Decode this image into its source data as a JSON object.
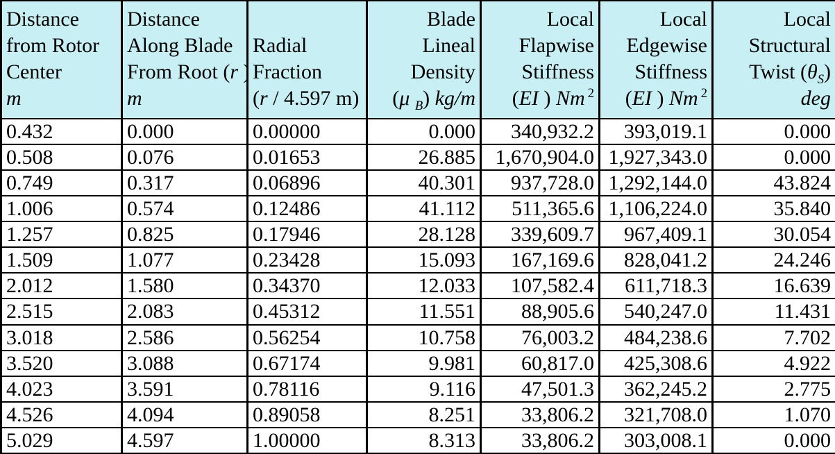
{
  "colors": {
    "header_background": "#C7EFF4",
    "grid_border": "#000000",
    "cell_background": "#FFFFFF"
  },
  "chart_data": {
    "type": "table",
    "title": "Blade structural properties distribution table",
    "columns": [
      "Distance from Rotor Center (m)",
      "Distance Along Blade From Root (r) (m)",
      "Radial Fraction (r / 4.597 m)",
      "Blade Lineal Density (muB) (kg/m)",
      "Local Flapwise Stiffness (EI) (Nm2)",
      "Local Edgewise Stiffness (EI) (Nm2)",
      "Local Structural Twist (thetaS) (deg)"
    ],
    "rows": [
      [
        0.432,
        0.0,
        0.0,
        0.0,
        340932.2,
        393019.1,
        0.0
      ],
      [
        0.508,
        0.076,
        0.01653,
        26.885,
        1670904.0,
        1927343.0,
        0.0
      ],
      [
        0.749,
        0.317,
        0.06896,
        40.301,
        937728.0,
        1292144.0,
        43.824
      ],
      [
        1.006,
        0.574,
        0.12486,
        41.112,
        511365.6,
        1106224.0,
        35.84
      ],
      [
        1.257,
        0.825,
        0.17946,
        28.128,
        339609.7,
        967409.1,
        30.054
      ],
      [
        1.509,
        1.077,
        0.23428,
        15.093,
        167169.6,
        828041.2,
        24.246
      ],
      [
        2.012,
        1.58,
        0.3437,
        12.033,
        107582.4,
        611718.3,
        16.639
      ],
      [
        2.515,
        2.083,
        0.45312,
        11.551,
        88905.6,
        540247.0,
        11.431
      ],
      [
        3.018,
        2.586,
        0.56254,
        10.758,
        76003.2,
        484238.6,
        7.702
      ],
      [
        3.52,
        3.088,
        0.67174,
        9.981,
        60817.0,
        425308.6,
        4.922
      ],
      [
        4.023,
        3.591,
        0.78116,
        9.116,
        47501.3,
        362245.2,
        2.775
      ],
      [
        4.526,
        4.094,
        0.89058,
        8.251,
        33806.2,
        321708.0,
        1.07
      ],
      [
        5.029,
        4.597,
        1.0,
        8.313,
        33806.2,
        303008.1,
        0.0
      ]
    ]
  },
  "display": {
    "headers": [
      {
        "lines": [
          "Distance",
          "from Rotor",
          "Center",
          "<i>m</i>"
        ]
      },
      {
        "lines": [
          "Distance",
          "Along Blade",
          "From Root (<i>r</i> )",
          "<i>m</i>"
        ]
      },
      {
        "lines": [
          "",
          "Radial",
          "Fraction",
          "(<i>r</i> / 4.597 m)"
        ]
      },
      {
        "lines": [
          "Blade",
          "Lineal",
          "Density",
          "(<i>&#956;</i> <sub><i>B</i></sub>) <i>kg/m</i>"
        ]
      },
      {
        "lines": [
          "Local",
          "Flapwise",
          "Stiffness",
          "(<i>EI</i> ) <i>Nm</i><sup>2</sup>"
        ]
      },
      {
        "lines": [
          "Local",
          "Edgewise",
          "Stiffness",
          "(<i>EI</i> ) <i>Nm</i><sup>2</sup>"
        ]
      },
      {
        "lines": [
          "Local",
          "Structural",
          "Twist (<i>&#952;</i><sub><i>S</i></sub>)",
          "<i>deg</i>"
        ]
      }
    ],
    "rows": [
      [
        "0.432",
        "0.000",
        "0.00000",
        "0.000",
        "340,932.2",
        "393,019.1",
        "0.000"
      ],
      [
        "0.508",
        "0.076",
        "0.01653",
        "26.885",
        "1,670,904.0",
        "1,927,343.0",
        "0.000"
      ],
      [
        "0.749",
        "0.317",
        "0.06896",
        "40.301",
        "937,728.0",
        "1,292,144.0",
        "43.824"
      ],
      [
        "1.006",
        "0.574",
        "0.12486",
        "41.112",
        "511,365.6",
        "1,106,224.0",
        "35.840"
      ],
      [
        "1.257",
        "0.825",
        "0.17946",
        "28.128",
        "339,609.7",
        "967,409.1",
        "30.054"
      ],
      [
        "1.509",
        "1.077",
        "0.23428",
        "15.093",
        "167,169.6",
        "828,041.2",
        "24.246"
      ],
      [
        "2.012",
        "1.580",
        "0.34370",
        "12.033",
        "107,582.4",
        "611,718.3",
        "16.639"
      ],
      [
        "2.515",
        "2.083",
        "0.45312",
        "11.551",
        "88,905.6",
        "540,247.0",
        "11.431"
      ],
      [
        "3.018",
        "2.586",
        "0.56254",
        "10.758",
        "76,003.2",
        "484,238.6",
        "7.702"
      ],
      [
        "3.520",
        "3.088",
        "0.67174",
        "9.981",
        "60,817.0",
        "425,308.6",
        "4.922"
      ],
      [
        "4.023",
        "3.591",
        "0.78116",
        "9.116",
        "47,501.3",
        "362,245.2",
        "2.775"
      ],
      [
        "4.526",
        "4.094",
        "0.89058",
        "8.251",
        "33,806.2",
        "321,708.0",
        "1.070"
      ],
      [
        "5.029",
        "4.597",
        "1.00000",
        "8.313",
        "33,806.2",
        "303,008.1",
        "0.000"
      ]
    ]
  }
}
